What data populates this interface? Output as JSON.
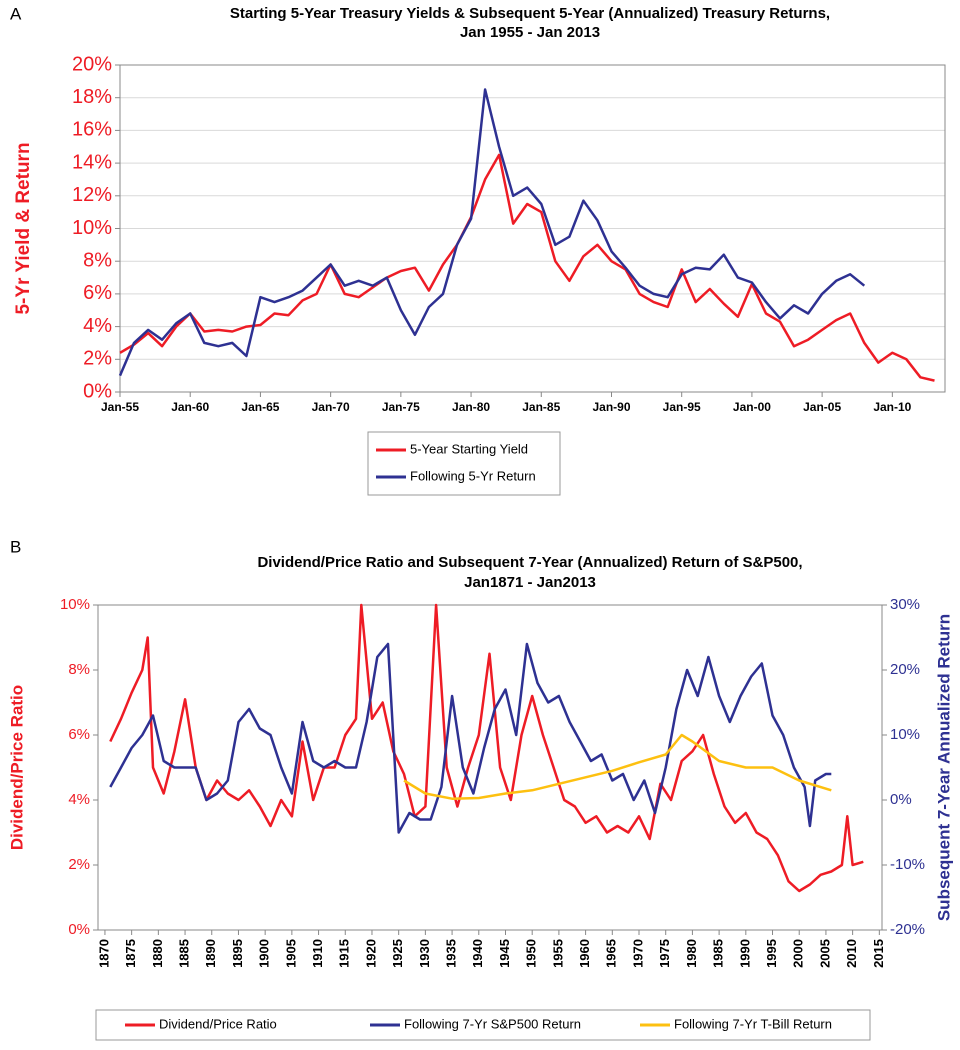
{
  "chart_data": [
    {
      "type": "line",
      "panel": "A",
      "title": [
        "Starting 5-Year Treasury Yields & Subsequent 5-Year (Annualized) Treasury Returns,",
        "Jan 1955 - Jan 2013"
      ],
      "ylabel": "5-Yr Yield & Return",
      "grid": true,
      "xlim": [
        1955,
        2013.75
      ],
      "xticks": [
        {
          "value": 1955,
          "label": "Jan-55"
        },
        {
          "value": 1960,
          "label": "Jan-60"
        },
        {
          "value": 1965,
          "label": "Jan-65"
        },
        {
          "value": 1970,
          "label": "Jan-70"
        },
        {
          "value": 1975,
          "label": "Jan-75"
        },
        {
          "value": 1980,
          "label": "Jan-80"
        },
        {
          "value": 1985,
          "label": "Jan-85"
        },
        {
          "value": 1990,
          "label": "Jan-90"
        },
        {
          "value": 1995,
          "label": "Jan-95"
        },
        {
          "value": 2000,
          "label": "Jan-00"
        },
        {
          "value": 2005,
          "label": "Jan-05"
        },
        {
          "value": 2010,
          "label": "Jan-10"
        }
      ],
      "ylim": [
        0,
        20
      ],
      "yticks": [
        {
          "value": 0,
          "label": "0%"
        },
        {
          "value": 2,
          "label": "2%"
        },
        {
          "value": 4,
          "label": "4%"
        },
        {
          "value": 6,
          "label": "6%"
        },
        {
          "value": 8,
          "label": "8%"
        },
        {
          "value": 10,
          "label": "10%"
        },
        {
          "value": 12,
          "label": "12%"
        },
        {
          "value": 14,
          "label": "14%"
        },
        {
          "value": 16,
          "label": "16%"
        },
        {
          "value": 18,
          "label": "18%"
        },
        {
          "value": 20,
          "label": "20%"
        }
      ],
      "x": [
        1955,
        1956,
        1957,
        1958,
        1959,
        1960,
        1961,
        1962,
        1963,
        1964,
        1965,
        1966,
        1967,
        1968,
        1969,
        1970,
        1971,
        1972,
        1973,
        1974,
        1975,
        1976,
        1977,
        1978,
        1979,
        1980,
        1981,
        1982,
        1983,
        1984,
        1985,
        1986,
        1987,
        1988,
        1989,
        1990,
        1991,
        1992,
        1993,
        1994,
        1995,
        1996,
        1997,
        1998,
        1999,
        2000,
        2001,
        2002,
        2003,
        2004,
        2005,
        2006,
        2007,
        2008,
        2009,
        2010,
        2011,
        2012,
        2013
      ],
      "series": [
        {
          "name": "5-Year Starting Yield",
          "color": "#ee1c25",
          "values": [
            2.4,
            2.9,
            3.6,
            2.8,
            4.0,
            4.8,
            3.7,
            3.8,
            3.7,
            4.0,
            4.1,
            4.8,
            4.7,
            5.6,
            6.0,
            7.8,
            6.0,
            5.8,
            6.4,
            7.0,
            7.4,
            7.6,
            6.2,
            7.8,
            9.0,
            10.7,
            13.0,
            14.5,
            10.3,
            11.5,
            11.0,
            8.0,
            6.8,
            8.3,
            9.0,
            8.0,
            7.5,
            6.0,
            5.5,
            5.2,
            7.5,
            5.5,
            6.3,
            5.4,
            4.6,
            6.6,
            4.8,
            4.3,
            2.8,
            3.2,
            3.8,
            4.4,
            4.8,
            3.0,
            1.8,
            2.4,
            2.0,
            0.9,
            0.7
          ]
        },
        {
          "name": "Following 5-Yr Return",
          "color": "#2e3192",
          "values": [
            1.0,
            3.0,
            3.8,
            3.2,
            4.2,
            4.8,
            3.0,
            2.8,
            3.0,
            2.2,
            5.8,
            5.5,
            5.8,
            6.2,
            7.0,
            7.8,
            6.5,
            6.8,
            6.5,
            7.0,
            5.0,
            3.5,
            5.2,
            6.0,
            9.0,
            10.6,
            18.5,
            15.0,
            12.0,
            12.5,
            11.5,
            9.0,
            9.5,
            11.7,
            10.5,
            8.6,
            7.6,
            6.5,
            6.0,
            5.8,
            7.2,
            7.6,
            7.5,
            8.4,
            7.0,
            6.7,
            5.5,
            4.5,
            5.3,
            4.8,
            6.0,
            6.8,
            7.2,
            6.5,
            null,
            null,
            null,
            null,
            null
          ]
        }
      ]
    },
    {
      "type": "line",
      "panel": "B",
      "title": [
        "Dividend/Price Ratio and Subsequent 7-Year (Annualized) Return of S&P500,",
        "Jan1871 - Jan2013"
      ],
      "ylabel": "Dividend/Price Ratio",
      "y2label": "Subsequent 7-Year Annualized Return",
      "grid": false,
      "xlim": [
        1868.7,
        2015.5
      ],
      "xticks": [
        1870,
        1875,
        1880,
        1885,
        1890,
        1895,
        1900,
        1905,
        1910,
        1915,
        1920,
        1925,
        1930,
        1935,
        1940,
        1945,
        1950,
        1955,
        1960,
        1965,
        1970,
        1975,
        1980,
        1985,
        1990,
        1995,
        2000,
        2005,
        2010,
        2015
      ],
      "ylim": [
        0,
        10
      ],
      "yticks": [
        {
          "value": 0,
          "label": "0%"
        },
        {
          "value": 2,
          "label": "2%"
        },
        {
          "value": 4,
          "label": "4%"
        },
        {
          "value": 6,
          "label": "6%"
        },
        {
          "value": 8,
          "label": "8%"
        },
        {
          "value": 10,
          "label": "10%"
        }
      ],
      "y2lim": [
        -20,
        30
      ],
      "y2ticks": [
        {
          "value": -20,
          "label": "-20%"
        },
        {
          "value": -10,
          "label": "-10%"
        },
        {
          "value": 0,
          "label": "0%"
        },
        {
          "value": 10,
          "label": "10%"
        },
        {
          "value": 20,
          "label": "20%"
        },
        {
          "value": 30,
          "label": "30%"
        }
      ],
      "series": [
        {
          "name": "Dividend/Price Ratio",
          "color": "#ee1c25",
          "x": [
            1871,
            1873,
            1875,
            1877,
            1878,
            1879,
            1881,
            1883,
            1885,
            1887,
            1889,
            1891,
            1893,
            1895,
            1897,
            1899,
            1901,
            1903,
            1905,
            1907,
            1909,
            1911,
            1913,
            1915,
            1917,
            1918,
            1920,
            1922,
            1924,
            1926,
            1928,
            1930,
            1932,
            1934,
            1936,
            1938,
            1940,
            1942,
            1944,
            1946,
            1948,
            1950,
            1952,
            1954,
            1956,
            1958,
            1960,
            1962,
            1964,
            1966,
            1968,
            1970,
            1972,
            1974,
            1976,
            1978,
            1980,
            1982,
            1984,
            1986,
            1988,
            1990,
            1992,
            1994,
            1996,
            1998,
            2000,
            2002,
            2004,
            2006,
            2008,
            2009,
            2010,
            2012
          ],
          "values": [
            5.8,
            6.5,
            7.3,
            8.0,
            9.0,
            5.0,
            4.2,
            5.5,
            7.1,
            5.0,
            4.0,
            4.6,
            4.2,
            4.0,
            4.3,
            3.8,
            3.2,
            4.0,
            3.5,
            5.8,
            4.0,
            5.0,
            5.0,
            6.0,
            6.5,
            10.0,
            6.5,
            7.0,
            5.5,
            4.8,
            3.5,
            3.8,
            10.0,
            5.0,
            3.8,
            5.0,
            6.0,
            8.5,
            5.0,
            4.0,
            6.0,
            7.2,
            6.0,
            5.0,
            4.0,
            3.8,
            3.3,
            3.5,
            3.0,
            3.2,
            3.0,
            3.5,
            2.8,
            4.5,
            4.0,
            5.2,
            5.5,
            6.0,
            4.8,
            3.8,
            3.3,
            3.6,
            3.0,
            2.8,
            2.3,
            1.5,
            1.2,
            1.4,
            1.7,
            1.8,
            2.0,
            3.5,
            2.0,
            2.1
          ]
        },
        {
          "name": "Following 7-Yr S&P500 Return",
          "color": "#2e3192",
          "axis": "y2",
          "x": [
            1871,
            1873,
            1875,
            1877,
            1879,
            1881,
            1883,
            1885,
            1887,
            1889,
            1891,
            1893,
            1895,
            1897,
            1899,
            1901,
            1903,
            1905,
            1907,
            1909,
            1911,
            1913,
            1915,
            1917,
            1919,
            1921,
            1923,
            1925,
            1927,
            1929,
            1931,
            1933,
            1935,
            1937,
            1939,
            1941,
            1943,
            1945,
            1947,
            1949,
            1951,
            1953,
            1955,
            1957,
            1959,
            1961,
            1963,
            1965,
            1967,
            1969,
            1971,
            1973,
            1975,
            1977,
            1979,
            1981,
            1983,
            1985,
            1987,
            1989,
            1991,
            1993,
            1995,
            1997,
            1999,
            2001,
            2002,
            2003,
            2005,
            2006
          ],
          "values": [
            2,
            5,
            8,
            10,
            13,
            6,
            5,
            5,
            5,
            0,
            1,
            3,
            12,
            14,
            11,
            10,
            5,
            1,
            12,
            6,
            5,
            6,
            5,
            5,
            12,
            22,
            24,
            -5,
            -2,
            -3,
            -3,
            2,
            16,
            5,
            1,
            8,
            14,
            17,
            10,
            24,
            18,
            15,
            16,
            12,
            9,
            6,
            7,
            3,
            4,
            0,
            3,
            -2,
            5,
            14,
            20,
            16,
            22,
            16,
            12,
            16,
            19,
            21,
            13,
            10,
            5,
            2,
            -4,
            3,
            4,
            4
          ]
        },
        {
          "name": "Following 7-Yr T-Bill Return",
          "color": "#fdc010",
          "axis": "y2",
          "x": [
            1926,
            1930,
            1935,
            1940,
            1945,
            1950,
            1955,
            1960,
            1965,
            1970,
            1975,
            1978,
            1980,
            1985,
            1990,
            1995,
            2000,
            2006
          ],
          "values": [
            3,
            1,
            0.2,
            0.3,
            1,
            1.5,
            2.5,
            3.5,
            4.5,
            5.8,
            7,
            10,
            9,
            6,
            5,
            5,
            3,
            1.5
          ]
        }
      ]
    }
  ]
}
